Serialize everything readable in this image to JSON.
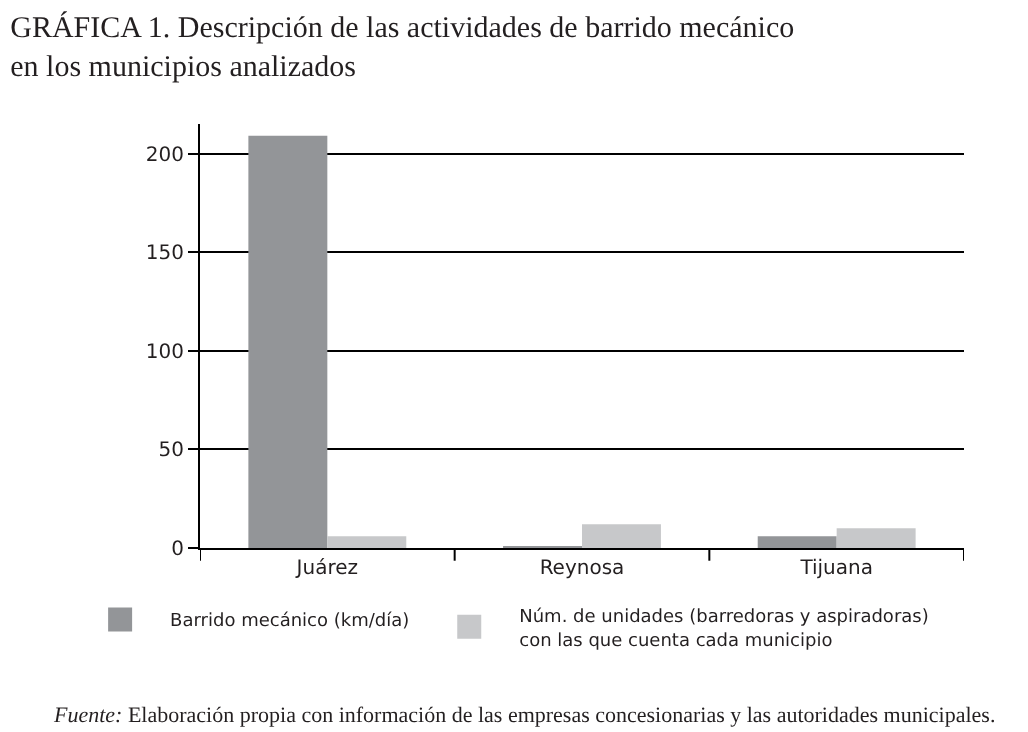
{
  "chart_data": {
    "type": "bar",
    "title": "GRÁFICA 1. Descripción de las actividades de barrido mecánico en los municipios analizados",
    "categories": [
      "Juárez",
      "Reynosa",
      "Tijuana"
    ],
    "series": [
      {
        "name": "Barrido mecánico (km/día)",
        "color": "#939598",
        "values": [
          209,
          1,
          6
        ]
      },
      {
        "name": "Núm. de unidades (barredoras y aspiradoras) con las que cuenta cada municipio",
        "color": "#c7c8ca",
        "values": [
          6,
          12,
          10
        ]
      }
    ],
    "ylim": [
      0,
      215
    ],
    "yticks": [
      0,
      50,
      100,
      150,
      200
    ],
    "grid": "y",
    "legend": "bottom",
    "annotations": [
      "Fuente: Elaboración propia con información de las empresas concesionarias y las autoridades municipales."
    ]
  }
}
